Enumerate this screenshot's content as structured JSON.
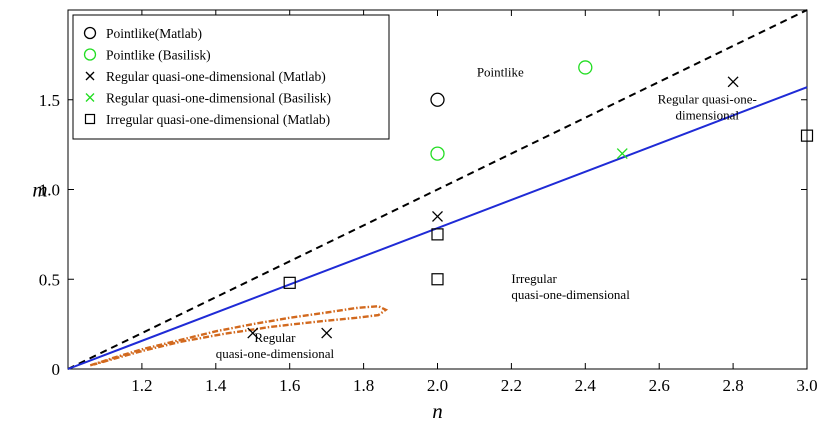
{
  "chart_data": {
    "type": "scatter",
    "xlabel": "n",
    "ylabel": "m",
    "xlim": [
      1.0,
      3.0
    ],
    "ylim": [
      0,
      2.0
    ],
    "x_ticks": [
      1.2,
      1.4,
      1.6,
      1.8,
      2.0,
      2.2,
      2.4,
      2.6,
      2.8,
      3.0
    ],
    "x_tick_labels": [
      "1.2",
      "1.4",
      "1.6",
      "1.8",
      "2.0",
      "2.2",
      "2.4",
      "2.6",
      "2.8",
      "3.0"
    ],
    "y_ticks": [
      0,
      0.5,
      1.0,
      1.5
    ],
    "y_tick_labels": [
      "0",
      "0.5",
      "1.0",
      "1.5"
    ],
    "grid": false,
    "legend_position": "top-left",
    "series": [
      {
        "name": "Pointlike(Matlab)",
        "marker": "circle",
        "color": "#000000",
        "points": [
          [
            2.0,
            1.5
          ]
        ]
      },
      {
        "name": "Pointlike (Basilisk)",
        "marker": "circle",
        "color": "#22dd22",
        "points": [
          [
            2.0,
            1.2
          ],
          [
            2.4,
            1.68
          ]
        ]
      },
      {
        "name": "Regular quasi-one-dimensional (Matlab)",
        "marker": "x",
        "color": "#000000",
        "points": [
          [
            1.5,
            0.2
          ],
          [
            1.7,
            0.2
          ],
          [
            2.0,
            0.85
          ],
          [
            2.8,
            1.6
          ]
        ]
      },
      {
        "name": "Regular quasi-one-dimensional (Basilisk)",
        "marker": "x",
        "color": "#22dd22",
        "points": [
          [
            2.5,
            1.2
          ]
        ]
      },
      {
        "name": "Irregular quasi-one-dimensional (Matlab)",
        "marker": "square",
        "color": "#000000",
        "points": [
          [
            1.6,
            0.48
          ],
          [
            2.0,
            0.75
          ],
          [
            2.0,
            0.5
          ],
          [
            3.0,
            1.3
          ]
        ]
      }
    ],
    "lines": [
      {
        "style": "dashed",
        "color": "#000000",
        "points": [
          [
            1.0,
            0.0
          ],
          [
            3.0,
            2.0
          ]
        ]
      },
      {
        "style": "solid",
        "color": "#1f2bd6",
        "points": [
          [
            1.0,
            0.0
          ],
          [
            3.0,
            1.57
          ]
        ]
      },
      {
        "style": "dash-dot",
        "color": "#d2691e",
        "points": [
          [
            1.06,
            0.02
          ],
          [
            1.12,
            0.06
          ],
          [
            1.2,
            0.11
          ],
          [
            1.3,
            0.16
          ],
          [
            1.4,
            0.21
          ],
          [
            1.5,
            0.25
          ],
          [
            1.6,
            0.285
          ],
          [
            1.7,
            0.315
          ],
          [
            1.78,
            0.34
          ],
          [
            1.84,
            0.35
          ],
          [
            1.86,
            0.33
          ],
          [
            1.84,
            0.3
          ],
          [
            1.78,
            0.285
          ],
          [
            1.68,
            0.265
          ],
          [
            1.55,
            0.235
          ],
          [
            1.42,
            0.195
          ],
          [
            1.3,
            0.15
          ],
          [
            1.2,
            0.1
          ],
          [
            1.13,
            0.06
          ],
          [
            1.07,
            0.025
          ]
        ]
      }
    ],
    "annotations": [
      {
        "lines": [
          "Pointlike"
        ],
        "x": 2.17,
        "y": 1.63,
        "anchor": "middle"
      },
      {
        "lines": [
          "Regular quasi-one-",
          "dimensional"
        ],
        "x": 2.73,
        "y": 1.48,
        "anchor": "middle"
      },
      {
        "lines": [
          "Irregular",
          "quasi-one-dimensional"
        ],
        "x": 2.2,
        "y": 0.48,
        "anchor": "start"
      },
      {
        "lines": [
          "Regular",
          "quasi-one-dimensional"
        ],
        "x": 1.56,
        "y": 0.15,
        "anchor": "middle"
      }
    ]
  }
}
